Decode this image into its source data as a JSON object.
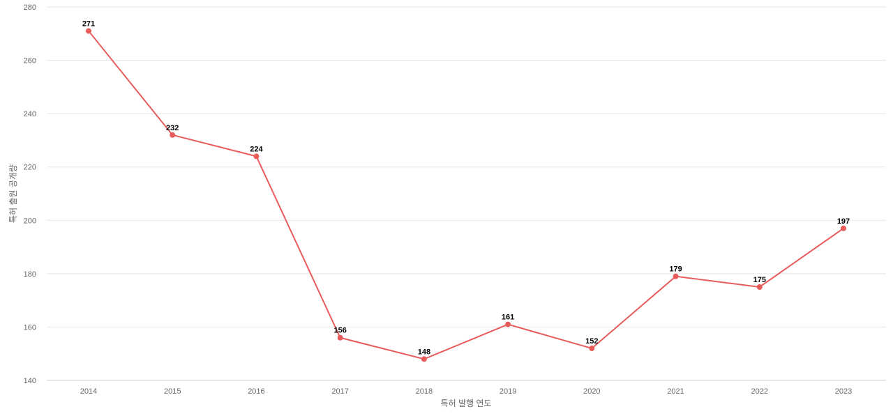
{
  "chart_data": {
    "type": "line",
    "title": "",
    "xlabel": "특허 발행 연도",
    "ylabel": "특허 출원 공개량",
    "categories": [
      "2014",
      "2015",
      "2016",
      "2017",
      "2018",
      "2019",
      "2020",
      "2021",
      "2022",
      "2023"
    ],
    "series": [
      {
        "values": [
          271,
          232,
          224,
          156,
          148,
          161,
          152,
          179,
          175,
          197
        ],
        "color": "#e85b5b"
      }
    ],
    "ylim": [
      140,
      280
    ],
    "yticks": [
      140,
      160,
      180,
      200,
      220,
      240,
      260,
      280
    ],
    "grid": true,
    "legend": "none",
    "data_labels": true
  }
}
